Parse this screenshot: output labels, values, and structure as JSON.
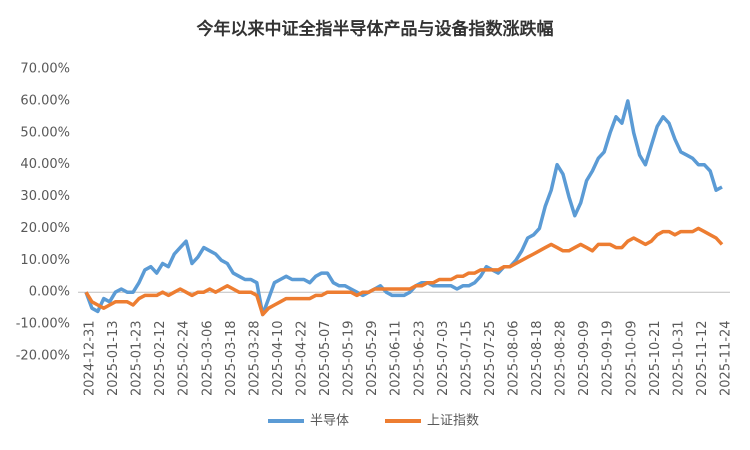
{
  "chart_data": {
    "type": "line",
    "title": "今年以来中证全指半导体产品与设备指数涨跌幅",
    "categories": [
      "2024-12-31",
      null,
      null,
      null,
      "2025-01-13",
      null,
      null,
      null,
      "2025-01-23",
      null,
      null,
      null,
      "2025-02-12",
      null,
      null,
      null,
      "2025-02-24",
      null,
      null,
      null,
      "2025-03-06",
      null,
      null,
      null,
      "2025-03-18",
      null,
      null,
      null,
      "2025-03-28",
      null,
      null,
      null,
      "2025-04-10",
      null,
      null,
      null,
      "2025-04-22",
      null,
      null,
      null,
      "2025-05-07",
      null,
      null,
      null,
      "2025-05-19",
      null,
      null,
      null,
      "2025-05-29",
      null,
      null,
      null,
      "2025-06-11",
      null,
      null,
      null,
      "2025-06-23",
      null,
      null,
      null,
      "2025-07-03",
      null,
      null,
      null,
      "2025-07-15",
      null,
      null,
      null,
      "2025-07-25",
      null,
      null,
      null,
      "2025-08-06",
      null,
      null,
      null,
      "2025-08-18",
      null,
      null,
      null,
      "2025-08-28",
      null,
      null,
      null,
      "2025-09-09",
      null,
      null,
      null,
      "2025-09-19",
      null,
      null,
      null,
      "2025-10-09",
      null,
      null,
      null,
      "2025-10-21",
      null,
      null,
      null,
      "2025-10-31",
      null,
      null,
      null,
      "2025-11-12",
      null,
      null,
      null,
      "2025-11-24"
    ],
    "series": [
      {
        "name": "半导体",
        "color": "#5b9bd5",
        "values": [
          0,
          -5,
          -6,
          -2,
          -3,
          0,
          1,
          0,
          0,
          3,
          7,
          8,
          6,
          9,
          8,
          12,
          14,
          16,
          9,
          11,
          14,
          13,
          12,
          10,
          9,
          6,
          5,
          4,
          4,
          3,
          -7,
          -2,
          3,
          4,
          5,
          4,
          4,
          4,
          3,
          5,
          6,
          6,
          3,
          2,
          2,
          1,
          0,
          -1,
          0,
          1,
          2,
          0,
          -1,
          -1,
          -1,
          0,
          2,
          3,
          3,
          2,
          2,
          2,
          2,
          1,
          2,
          2,
          3,
          5,
          8,
          7,
          6,
          8,
          8,
          10,
          13,
          17,
          18,
          20,
          27,
          32,
          40,
          37,
          30,
          24,
          28,
          35,
          38,
          42,
          44,
          50,
          55,
          53,
          60,
          50,
          43,
          40,
          46,
          52,
          55,
          53,
          48,
          44,
          43,
          42,
          40,
          40,
          38,
          32,
          33
        ]
      },
      {
        "name": "上证指数",
        "color": "#ed7d31",
        "values": [
          0,
          -3,
          -4,
          -5,
          -4,
          -3,
          -3,
          -3,
          -4,
          -2,
          -1,
          -1,
          -1,
          0,
          -1,
          0,
          1,
          0,
          -1,
          0,
          0,
          1,
          0,
          1,
          2,
          1,
          0,
          0,
          0,
          -1,
          -7,
          -5,
          -4,
          -3,
          -2,
          -2,
          -2,
          -2,
          -2,
          -1,
          -1,
          0,
          0,
          0,
          0,
          0,
          -1,
          0,
          0,
          1,
          1,
          1,
          1,
          1,
          1,
          1,
          2,
          2,
          3,
          3,
          4,
          4,
          4,
          5,
          5,
          6,
          6,
          7,
          7,
          7,
          7,
          8,
          8,
          9,
          10,
          11,
          12,
          13,
          14,
          15,
          14,
          13,
          13,
          14,
          15,
          14,
          13,
          15,
          15,
          15,
          14,
          14,
          16,
          17,
          16,
          15,
          16,
          18,
          19,
          19,
          18,
          19,
          19,
          19,
          20,
          19,
          18,
          17,
          15
        ]
      }
    ],
    "ylim": [
      -20,
      70
    ],
    "yticks": [
      {
        "value": 70,
        "label": "70.00%"
      },
      {
        "value": 60,
        "label": "60.00%"
      },
      {
        "value": 50,
        "label": "50.00%"
      },
      {
        "value": 40,
        "label": "40.00%"
      },
      {
        "value": 30,
        "label": "30.00%"
      },
      {
        "value": 20,
        "label": "20.00%"
      },
      {
        "value": 10,
        "label": "10.00%"
      },
      {
        "value": 0,
        "label": "0.00%"
      },
      {
        "value": -10,
        "label": "-10.00%"
      },
      {
        "value": -20,
        "label": "-20.00%"
      }
    ],
    "grid": false,
    "legend": "bottom"
  }
}
